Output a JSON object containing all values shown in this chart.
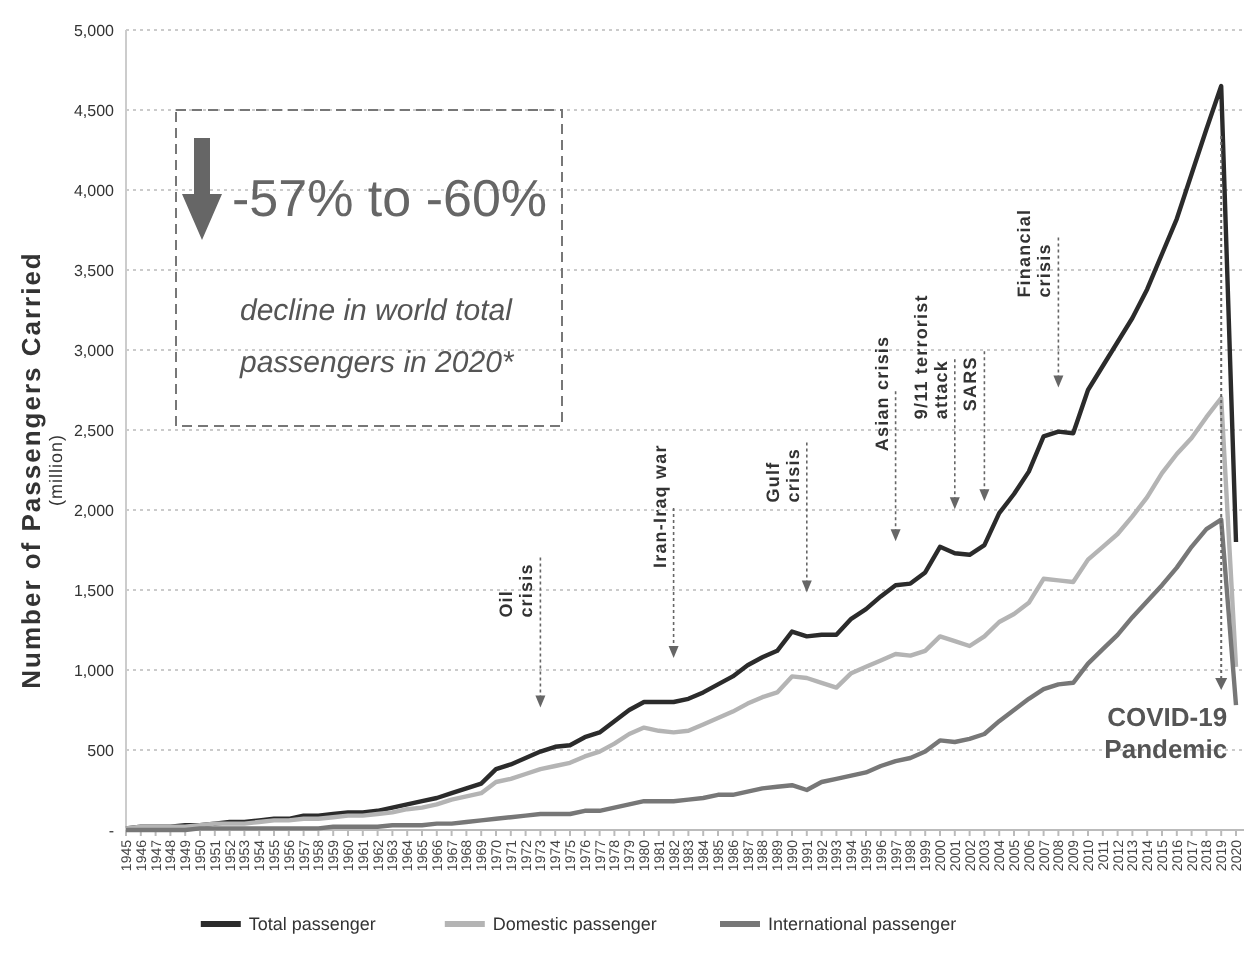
{
  "chart_data": {
    "type": "line",
    "ylabel": "Number of Passengers Carried\n(million)",
    "categories": [
      "1945",
      "1946",
      "1947",
      "1948",
      "1949",
      "1950",
      "1951",
      "1952",
      "1953",
      "1954",
      "1955",
      "1956",
      "1957",
      "1958",
      "1959",
      "1960",
      "1961",
      "1962",
      "1963",
      "1964",
      "1965",
      "1966",
      "1967",
      "1968",
      "1969",
      "1970",
      "1971",
      "1972",
      "1973",
      "1974",
      "1975",
      "1976",
      "1977",
      "1978",
      "1979",
      "1980",
      "1981",
      "1982",
      "1983",
      "1984",
      "1985",
      "1986",
      "1987",
      "1988",
      "1989",
      "1990",
      "1991",
      "1992",
      "1993",
      "1994",
      "1995",
      "1996",
      "1997",
      "1998",
      "1999",
      "2000",
      "2001",
      "2002",
      "2003",
      "2004",
      "2005",
      "2006",
      "2007",
      "2008",
      "2009",
      "2010",
      "2011",
      "2012",
      "2013",
      "2014",
      "2015",
      "2016",
      "2017",
      "2018",
      "2019",
      "2020"
    ],
    "series": [
      {
        "name": "Total passenger",
        "color": "#2b2b2b",
        "values": [
          10,
          20,
          20,
          20,
          30,
          30,
          40,
          50,
          50,
          60,
          70,
          70,
          90,
          90,
          100,
          110,
          110,
          120,
          140,
          160,
          180,
          200,
          230,
          260,
          290,
          380,
          410,
          450,
          490,
          520,
          530,
          580,
          610,
          680,
          750,
          800,
          800,
          800,
          820,
          860,
          910,
          960,
          1030,
          1080,
          1120,
          1240,
          1210,
          1220,
          1220,
          1320,
          1380,
          1460,
          1530,
          1540,
          1610,
          1770,
          1730,
          1720,
          1780,
          1980,
          2100,
          2240,
          2460,
          2490,
          2480,
          2750,
          2900,
          3050,
          3200,
          3380,
          3600,
          3820,
          4100,
          4380,
          4650,
          1800
        ]
      },
      {
        "name": "Domestic passenger",
        "color": "#b4b4b4",
        "values": [
          10,
          20,
          20,
          20,
          20,
          30,
          40,
          40,
          40,
          50,
          60,
          60,
          70,
          70,
          80,
          90,
          90,
          100,
          110,
          130,
          140,
          160,
          190,
          210,
          230,
          300,
          320,
          350,
          380,
          400,
          420,
          460,
          490,
          540,
          600,
          640,
          620,
          610,
          620,
          660,
          700,
          740,
          790,
          830,
          860,
          960,
          950,
          920,
          890,
          980,
          1020,
          1060,
          1100,
          1090,
          1120,
          1210,
          1180,
          1150,
          1210,
          1300,
          1350,
          1420,
          1570,
          1560,
          1550,
          1690,
          1770,
          1850,
          1960,
          2080,
          2230,
          2350,
          2450,
          2580,
          2700,
          1020
        ]
      },
      {
        "name": "International passenger",
        "color": "#777777",
        "values": [
          0,
          0,
          0,
          0,
          0,
          10,
          10,
          10,
          10,
          10,
          10,
          10,
          10,
          10,
          20,
          20,
          20,
          20,
          30,
          30,
          30,
          40,
          40,
          50,
          60,
          70,
          80,
          90,
          100,
          100,
          100,
          120,
          120,
          140,
          160,
          180,
          180,
          180,
          190,
          200,
          220,
          220,
          240,
          260,
          270,
          280,
          250,
          300,
          320,
          340,
          360,
          400,
          430,
          450,
          490,
          560,
          550,
          570,
          600,
          680,
          750,
          820,
          880,
          910,
          920,
          1040,
          1130,
          1220,
          1330,
          1430,
          1530,
          1640,
          1770,
          1880,
          1940,
          780
        ]
      }
    ],
    "ylim": [
      0,
      5000
    ],
    "yticks": [
      {
        "value": 0,
        "label": "-"
      },
      {
        "value": 500,
        "label": "500"
      },
      {
        "value": 1000,
        "label": "1,000"
      },
      {
        "value": 1500,
        "label": "1,500"
      },
      {
        "value": 2000,
        "label": "2,000"
      },
      {
        "value": 2500,
        "label": "2,500"
      },
      {
        "value": 3000,
        "label": "3,000"
      },
      {
        "value": 3500,
        "label": "3,500"
      },
      {
        "value": 4000,
        "label": "4,000"
      },
      {
        "value": 4500,
        "label": "4,500"
      },
      {
        "value": 5000,
        "label": "5,000"
      }
    ],
    "grid": "y",
    "legend": "bottom",
    "marker": "none",
    "line_style": "solid",
    "annotations": [
      "-57% to -60%",
      "decline in world total passengers in 2020*"
    ],
    "ref_lines": [
      {
        "axis": "x",
        "value": "1973",
        "label": "Oil crisis",
        "line_style": "dotted"
      },
      {
        "axis": "x",
        "value": "1982",
        "label": "Iran-Iraq war",
        "line_style": "dotted"
      },
      {
        "axis": "x",
        "value": "1991",
        "label": "Gulf crisis",
        "line_style": "dotted"
      },
      {
        "axis": "x",
        "value": "1997",
        "label": "Asian crisis",
        "line_style": "dotted"
      },
      {
        "axis": "x",
        "value": "2001",
        "label": "9/11 terrorist attack",
        "line_style": "dotted"
      },
      {
        "axis": "x",
        "value": "2003",
        "label": "SARS",
        "line_style": "dotted"
      },
      {
        "axis": "x",
        "value": "2008",
        "label": "Financial crisis",
        "line_style": "dotted"
      },
      {
        "axis": "x",
        "value": "2019",
        "label": "COVID-19 Pandemic",
        "line_style": "dotted"
      }
    ]
  }
}
